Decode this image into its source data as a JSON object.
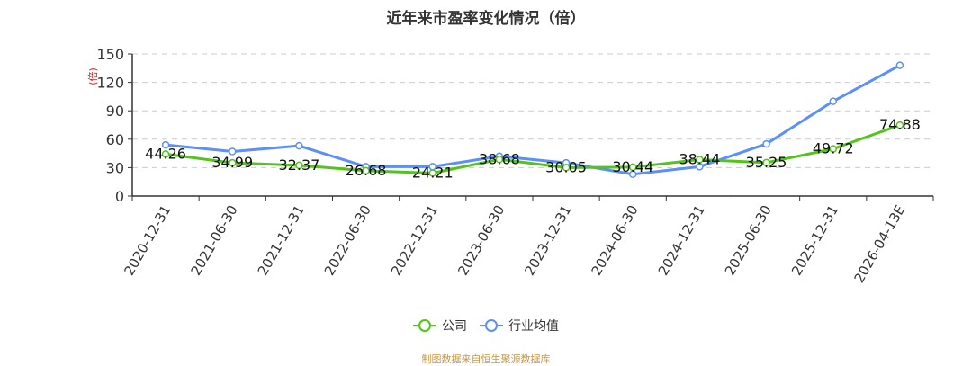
{
  "title": "近年来市盈率变化情况（倍）",
  "source_note": "制图数据来自恒生聚源数据库",
  "legend": [
    {
      "label": "公司",
      "color": "#52c41a"
    },
    {
      "label": "行业均值",
      "color": "#5b8ff9"
    }
  ],
  "chart_data": {
    "type": "line",
    "title": "近年来市盈率变化情况（倍）",
    "xlabel": "",
    "ylabel": "(倍)",
    "ylim": [
      0,
      150
    ],
    "yticks": [
      0,
      30,
      60,
      90,
      120,
      150
    ],
    "grid": true,
    "legend_position": "bottom",
    "categories": [
      "2020-12-31",
      "2021-06-30",
      "2021-12-31",
      "2022-06-30",
      "2022-12-31",
      "2023-06-30",
      "2023-12-31",
      "2024-06-30",
      "2024-12-31",
      "2025-06-30",
      "2025-12-31",
      "2026-04-13E"
    ],
    "series": [
      {
        "name": "公司",
        "color": "#52c41a",
        "values": [
          44.26,
          34.99,
          32.37,
          26.68,
          24.21,
          38.68,
          30.05,
          30.44,
          38.44,
          35.25,
          49.72,
          74.88
        ],
        "labels": [
          "44.26",
          "34.99",
          "32.37",
          "26.68",
          "24.21",
          "38.68",
          "30.05",
          "30.44",
          "38.44",
          "35.25",
          "49.72",
          "74.88"
        ]
      },
      {
        "name": "行业均值",
        "color": "#5b8ff9",
        "values": [
          54,
          47,
          53,
          31,
          31,
          42,
          35,
          23,
          31,
          55,
          100,
          138
        ]
      }
    ]
  }
}
